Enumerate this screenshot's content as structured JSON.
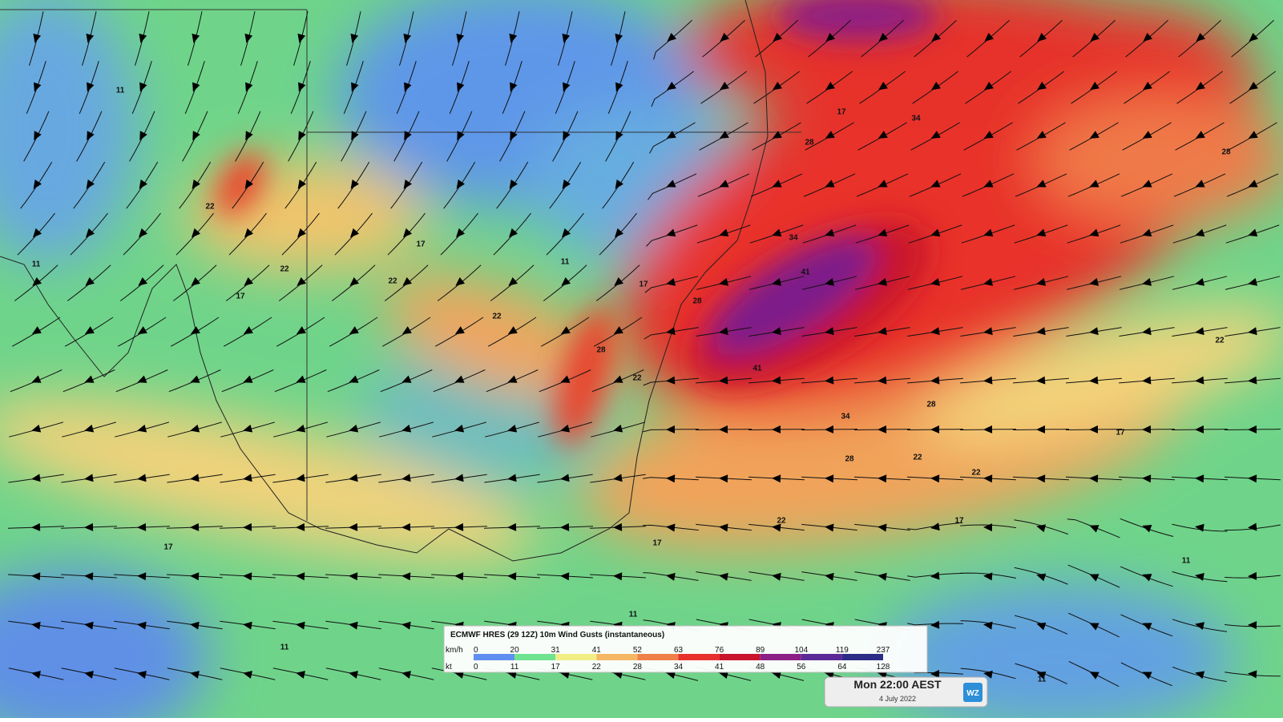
{
  "legend": {
    "title": "ECMWF HRES (29 12Z) 10m Wind Gusts (instantaneous)",
    "kmh_label": "km/h",
    "kt_label": "kt",
    "kmh": [
      "0",
      "20",
      "31",
      "41",
      "52",
      "63",
      "76",
      "89",
      "104",
      "119",
      "237"
    ],
    "kt": [
      "0",
      "11",
      "17",
      "22",
      "28",
      "34",
      "41",
      "48",
      "56",
      "64",
      "128"
    ],
    "colors": [
      "#5f8ff0",
      "#6fe38f",
      "#f2ee86",
      "#f5b764",
      "#f0804a",
      "#e8312c",
      "#c9142c",
      "#8b1f86",
      "#5b2a96",
      "#2c2c86"
    ]
  },
  "time": {
    "label": "Mon 22:00 AEST",
    "date": "4 July 2022"
  },
  "logo": "WZ",
  "contour_labels": [
    "11",
    "11",
    "17",
    "22",
    "22",
    "22",
    "17",
    "11",
    "17",
    "28",
    "22",
    "28",
    "34",
    "41",
    "41",
    "34",
    "28",
    "22",
    "28",
    "34",
    "28",
    "22",
    "17",
    "17",
    "22",
    "17",
    "11",
    "11",
    "11",
    "17",
    "22",
    "11",
    "28",
    "17",
    "22"
  ]
}
